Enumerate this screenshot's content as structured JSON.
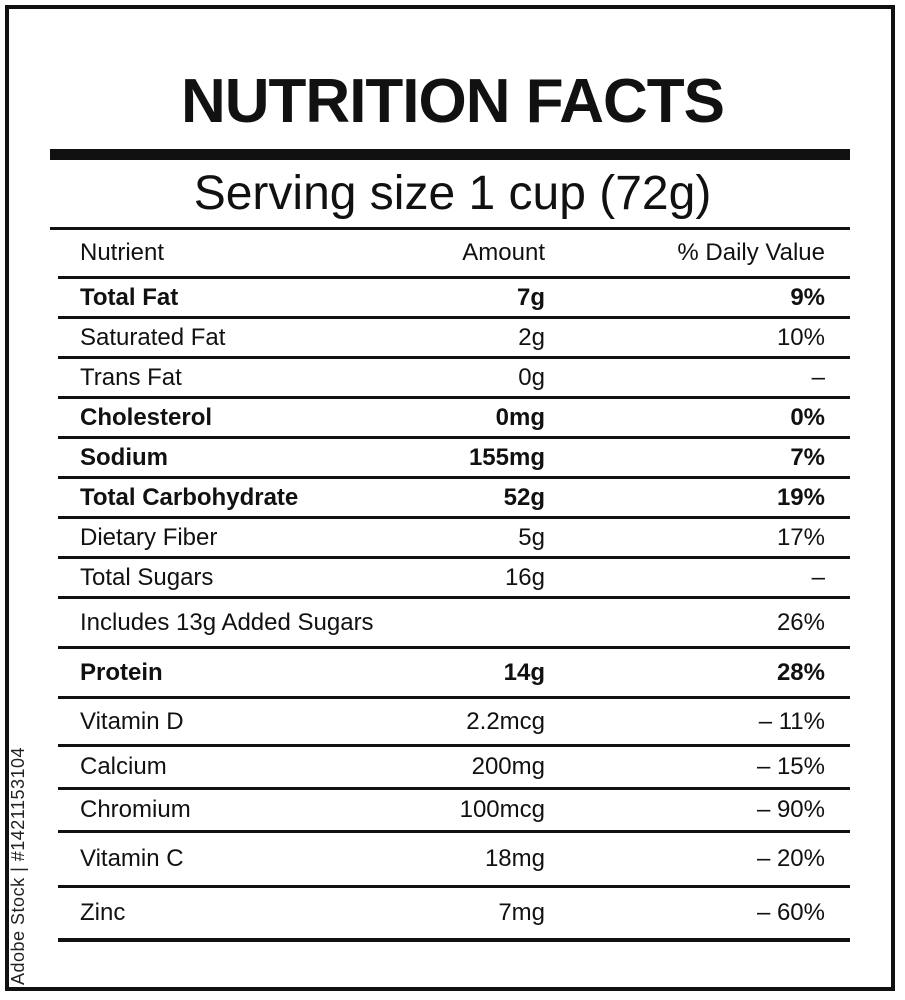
{
  "label": {
    "title": "NUTRITION FACTS",
    "serving_size": "Serving size 1 cup (72g)",
    "header": {
      "nutrient": "Nutrient",
      "amount": "Amount",
      "daily_value": "% Daily Value"
    },
    "rows": [
      {
        "name": "Total Fat",
        "amount": "7g",
        "dv": "9%",
        "bold": true
      },
      {
        "name": "Saturated Fat",
        "amount": "2g",
        "dv": "10%",
        "bold": false
      },
      {
        "name": "Trans Fat",
        "amount": "0g",
        "dv": "–",
        "bold": false
      },
      {
        "name": "Cholesterol",
        "amount": "0mg",
        "dv": "0%",
        "bold": true
      },
      {
        "name": "Sodium",
        "amount": "155mg",
        "dv": "7%",
        "bold": true
      },
      {
        "name": "Total Carbohydrate",
        "amount": "52g",
        "dv": "19%",
        "bold": true
      },
      {
        "name": "Dietary Fiber",
        "amount": "5g",
        "dv": "17%",
        "bold": false
      },
      {
        "name": "Total Sugars",
        "amount": "16g",
        "dv": "–",
        "bold": false
      },
      {
        "name": "Includes 13g Added Sugars",
        "amount": "",
        "dv": "26%",
        "bold": false
      },
      {
        "name": "Protein",
        "amount": "14g",
        "dv": "28%",
        "bold": true
      },
      {
        "name": "Vitamin D",
        "amount": "2.2mcg",
        "dv": "– 11%",
        "bold": false
      },
      {
        "name": "Calcium",
        "amount": "200mg",
        "dv": "– 15%",
        "bold": false
      },
      {
        "name": "Chromium",
        "amount": "100mcg",
        "dv": "– 90%",
        "bold": false
      },
      {
        "name": "Vitamin C",
        "amount": "18mg",
        "dv": "– 20%",
        "bold": false
      },
      {
        "name": "Zinc",
        "amount": "7mg",
        "dv": "– 60%",
        "bold": false
      }
    ]
  },
  "watermark": "Adobe Stock | #1421153104"
}
